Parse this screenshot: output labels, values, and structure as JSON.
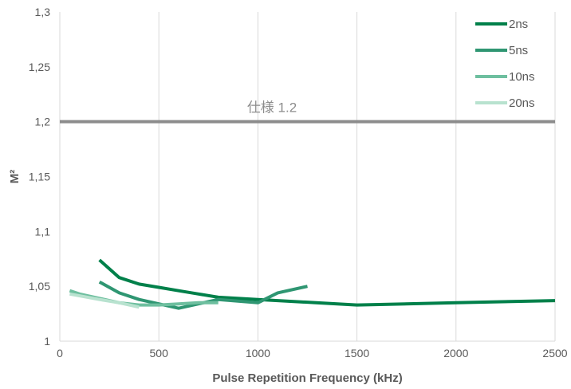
{
  "chart_data": {
    "type": "line",
    "title": "",
    "xlabel": "Pulse Repetition Frequency (kHz)",
    "ylabel": "M²",
    "xlim": [
      0,
      2500
    ],
    "ylim": [
      1,
      1.3
    ],
    "x_ticks": [
      0,
      500,
      1000,
      1500,
      2000,
      2500
    ],
    "x_tick_labels": [
      "0",
      "500",
      "1000",
      "1500",
      "2000",
      "2500"
    ],
    "y_ticks": [
      1,
      1.05,
      1.1,
      1.15,
      1.2,
      1.25,
      1.3
    ],
    "y_tick_labels": [
      "1",
      "1,05",
      "1,1",
      "1,15",
      "1,2",
      "1,25",
      "1,3"
    ],
    "grid": "vertical",
    "legend_position": "top-right",
    "reference_line": {
      "y": 1.2,
      "label": "仕様 1.2",
      "color": "#8c8c8c"
    },
    "series": [
      {
        "name": "2ns",
        "color": "#00804a",
        "points": [
          [
            200,
            1.074
          ],
          [
            300,
            1.058
          ],
          [
            400,
            1.052
          ],
          [
            500,
            1.049
          ],
          [
            600,
            1.046
          ],
          [
            700,
            1.043
          ],
          [
            800,
            1.04
          ],
          [
            1000,
            1.038
          ],
          [
            1500,
            1.033
          ],
          [
            2000,
            1.035
          ],
          [
            2500,
            1.037
          ]
        ]
      },
      {
        "name": "5ns",
        "color": "#2f9672",
        "points": [
          [
            200,
            1.054
          ],
          [
            300,
            1.044
          ],
          [
            400,
            1.038
          ],
          [
            500,
            1.034
          ],
          [
            600,
            1.03
          ],
          [
            800,
            1.038
          ],
          [
            1000,
            1.035
          ],
          [
            1100,
            1.044
          ],
          [
            1250,
            1.05
          ]
        ]
      },
      {
        "name": "10ns",
        "color": "#6ebf9f",
        "points": [
          [
            50,
            1.046
          ],
          [
            100,
            1.043
          ],
          [
            200,
            1.039
          ],
          [
            300,
            1.035
          ],
          [
            400,
            1.033
          ],
          [
            500,
            1.033
          ],
          [
            600,
            1.034
          ],
          [
            700,
            1.035
          ],
          [
            800,
            1.035
          ]
        ]
      },
      {
        "name": "20ns",
        "color": "#b8e2cf",
        "points": [
          [
            50,
            1.043
          ],
          [
            200,
            1.038
          ],
          [
            300,
            1.035
          ],
          [
            400,
            1.031
          ]
        ]
      }
    ]
  }
}
